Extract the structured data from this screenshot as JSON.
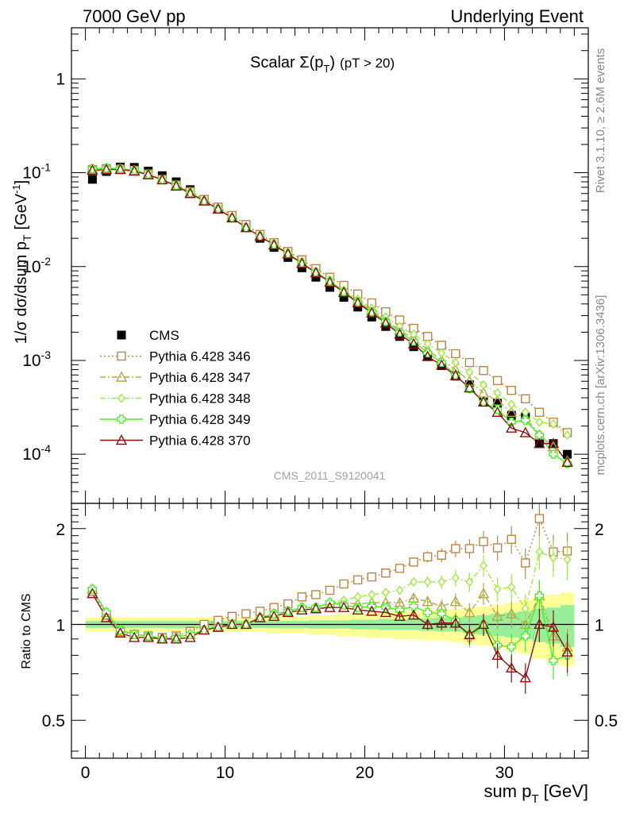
{
  "header": {
    "left": "7000 GeV pp",
    "right": "Underlying Event"
  },
  "side_labels": {
    "rivet": "Rivet 3.1.10, ≥ 2.6M events",
    "mcplots": "mcplots.cern.ch [arXiv:1306.3436]"
  },
  "chart_data": [
    {
      "type": "scatter",
      "panel": "main",
      "title_text": "Scalar Σ(p_T) (pT > 20)",
      "title": {
        "main": "Scalar ",
        "sigma": "Σ(p",
        "sub": "T",
        "close": ")",
        "cut": "(pT > 20)"
      },
      "ylabel": {
        "main": "1/σ dσ/dsum p",
        "sub": "T",
        "unit": "[GeV",
        "sup": "-1",
        "close": "]"
      },
      "watermark": "CMS_2011_S9120041",
      "yscale": "log",
      "ylim": [
        3e-05,
        3.5
      ],
      "xlim": [
        -1,
        36
      ],
      "legend_position": "bottom-left",
      "y_ticks": [
        {
          "value": 1,
          "base": "1",
          "exp": ""
        },
        {
          "value": 0.1,
          "base": "10",
          "exp": "-1"
        },
        {
          "value": 0.01,
          "base": "10",
          "exp": "-2"
        },
        {
          "value": 0.001,
          "base": "10",
          "exp": "-3"
        },
        {
          "value": 0.0001,
          "base": "10",
          "exp": "-4"
        }
      ],
      "x": [
        0.5,
        1.5,
        2.5,
        3.5,
        4.5,
        5.5,
        6.5,
        7.5,
        8.5,
        9.5,
        10.5,
        11.5,
        12.5,
        13.5,
        14.5,
        15.5,
        16.5,
        17.5,
        18.5,
        19.5,
        20.5,
        21.5,
        22.5,
        23.5,
        24.5,
        25.5,
        26.5,
        27.5,
        28.5,
        29.5,
        30.5,
        31.5,
        32.5,
        33.5,
        34.5
      ],
      "series": [
        {
          "name": "CMS",
          "color": "#000000",
          "marker": "square-filled",
          "line": "none",
          "values": [
            0.085,
            0.103,
            0.115,
            0.114,
            0.104,
            0.093,
            0.08,
            0.066,
            0.052,
            0.042,
            0.033,
            0.026,
            0.02,
            0.016,
            0.0125,
            0.0097,
            0.0077,
            0.006,
            0.0047,
            0.0037,
            0.0029,
            0.0023,
            0.0018,
            0.0014,
            0.0011,
            0.00088,
            0.00068,
            0.00055,
            0.00036,
            0.00035,
            0.00026,
            0.00025,
            0.00013,
            0.00013,
            0.0001
          ]
        },
        {
          "name": "Pythia 6.428 346",
          "color": "#b8864a",
          "marker": "square-open",
          "line": "dotted",
          "values": [
            0.108,
            0.11,
            0.109,
            0.106,
            0.097,
            0.085,
            0.074,
            0.063,
            0.052,
            0.043,
            0.035,
            0.028,
            0.022,
            0.018,
            0.0145,
            0.0118,
            0.0095,
            0.0077,
            0.0063,
            0.0051,
            0.0041,
            0.0033,
            0.0027,
            0.0022,
            0.0018,
            0.00145,
            0.00118,
            0.00095,
            0.00078,
            0.00061,
            0.00048,
            0.00039,
            0.00028,
            0.00022,
            0.00017
          ]
        },
        {
          "name": "Pythia 6.428 347",
          "color": "#b4a84a",
          "marker": "triangle-open",
          "line": "dashdot",
          "values": [
            0.11,
            0.112,
            0.11,
            0.106,
            0.096,
            0.084,
            0.073,
            0.061,
            0.05,
            0.041,
            0.033,
            0.026,
            0.021,
            0.0172,
            0.0138,
            0.011,
            0.0087,
            0.007,
            0.0055,
            0.0043,
            0.0034,
            0.0027,
            0.0021,
            0.0017,
            0.0013,
            0.001,
            0.0008,
            0.0006,
            0.00045,
            0.00037,
            0.00028,
            0.00025,
            0.00016,
            0.00012,
            8.5e-05
          ]
        },
        {
          "name": "Pythia 6.428 348",
          "color": "#9cec3c",
          "marker": "diamond-open",
          "line": "dashdot",
          "values": [
            0.11,
            0.112,
            0.11,
            0.106,
            0.096,
            0.084,
            0.073,
            0.061,
            0.05,
            0.041,
            0.033,
            0.026,
            0.021,
            0.0172,
            0.0138,
            0.011,
            0.0087,
            0.007,
            0.0056,
            0.0045,
            0.0036,
            0.0029,
            0.0023,
            0.0019,
            0.0015,
            0.0012,
            0.00095,
            0.00075,
            0.00055,
            0.00045,
            0.00034,
            0.00028,
            0.00022,
            0.00021,
            0.00016
          ]
        },
        {
          "name": "Pythia 6.428 349",
          "color": "#44ee22",
          "marker": "cross-open",
          "line": "solid",
          "values": [
            0.11,
            0.112,
            0.11,
            0.106,
            0.096,
            0.084,
            0.073,
            0.061,
            0.05,
            0.041,
            0.033,
            0.026,
            0.021,
            0.0172,
            0.0138,
            0.011,
            0.0087,
            0.007,
            0.0054,
            0.0042,
            0.0033,
            0.0026,
            0.002,
            0.0016,
            0.0012,
            0.00095,
            0.0007,
            0.0005,
            0.00036,
            0.0003,
            0.00022,
            0.00023,
            0.00016,
            0.0001,
            8e-05
          ]
        },
        {
          "name": "Pythia 6.428 370",
          "color": "#8c1010",
          "marker": "triangle-open",
          "line": "solid",
          "values": [
            0.106,
            0.108,
            0.108,
            0.104,
            0.095,
            0.084,
            0.072,
            0.06,
            0.05,
            0.041,
            0.033,
            0.026,
            0.021,
            0.017,
            0.0136,
            0.0108,
            0.0086,
            0.0068,
            0.0053,
            0.0041,
            0.0032,
            0.0025,
            0.0019,
            0.0015,
            0.0011,
            0.00089,
            0.00069,
            0.00051,
            0.00036,
            0.00028,
            0.00019,
            0.00017,
            0.00013,
            0.00013,
            8.2e-05
          ]
        }
      ]
    },
    {
      "type": "scatter",
      "panel": "ratio",
      "ylabel": "Ratio to CMS",
      "yscale": "log",
      "ylim": [
        0.38,
        2.4
      ],
      "xlim": [
        -1,
        36
      ],
      "xlabel": {
        "main": "sum p",
        "sub": "T",
        "unit": " [GeV]"
      },
      "x_ticks": [
        0,
        10,
        20,
        30
      ],
      "y_ticks": [
        0.5,
        1,
        2
      ],
      "reference_line": 1,
      "bands": {
        "outer_color": "#ffff99",
        "inner_color": "#99ee99",
        "outer_halfwidth": [
          0.05,
          0.05,
          0.05,
          0.05,
          0.05,
          0.05,
          0.05,
          0.05,
          0.05,
          0.05,
          0.05,
          0.05,
          0.05,
          0.06,
          0.06,
          0.06,
          0.07,
          0.07,
          0.08,
          0.08,
          0.09,
          0.09,
          0.1,
          0.1,
          0.11,
          0.11,
          0.12,
          0.13,
          0.14,
          0.15,
          0.17,
          0.19,
          0.22,
          0.24,
          0.26
        ],
        "inner_halfwidth": [
          0.025,
          0.025,
          0.025,
          0.025,
          0.025,
          0.025,
          0.025,
          0.025,
          0.025,
          0.025,
          0.025,
          0.025,
          0.025,
          0.025,
          0.025,
          0.025,
          0.03,
          0.03,
          0.03,
          0.035,
          0.035,
          0.04,
          0.04,
          0.04,
          0.045,
          0.05,
          0.05,
          0.06,
          0.07,
          0.08,
          0.09,
          0.1,
          0.12,
          0.13,
          0.15
        ]
      },
      "series": [
        {
          "name": "Pythia 6.428 346",
          "values": [
            1.27,
            1.07,
            0.95,
            0.93,
            0.92,
            0.91,
            0.92,
            0.95,
            1.0,
            1.03,
            1.06,
            1.08,
            1.1,
            1.13,
            1.16,
            1.22,
            1.24,
            1.28,
            1.34,
            1.38,
            1.41,
            1.45,
            1.5,
            1.57,
            1.63,
            1.65,
            1.73,
            1.73,
            1.82,
            1.74,
            1.85,
            1.56,
            2.15,
            1.69,
            1.7
          ]
        },
        {
          "name": "Pythia 6.428 347",
          "values": [
            1.29,
            1.09,
            0.96,
            0.93,
            0.92,
            0.9,
            0.91,
            0.93,
            0.96,
            0.98,
            1.0,
            1.0,
            1.05,
            1.08,
            1.1,
            1.13,
            1.13,
            1.17,
            1.17,
            1.16,
            1.17,
            1.17,
            1.17,
            1.21,
            1.18,
            1.14,
            1.18,
            1.09,
            1.25,
            1.06,
            1.08,
            1.0,
            1.23,
            0.92,
            0.85
          ]
        },
        {
          "name": "Pythia 6.428 348",
          "values": [
            1.29,
            1.09,
            0.96,
            0.93,
            0.92,
            0.9,
            0.91,
            0.93,
            0.96,
            0.98,
            1.0,
            1.0,
            1.05,
            1.08,
            1.1,
            1.13,
            1.13,
            1.17,
            1.19,
            1.22,
            1.24,
            1.26,
            1.28,
            1.36,
            1.36,
            1.36,
            1.4,
            1.36,
            1.53,
            1.29,
            1.31,
            1.12,
            1.69,
            1.62,
            1.6
          ]
        },
        {
          "name": "Pythia 6.428 349",
          "values": [
            1.29,
            1.09,
            0.96,
            0.93,
            0.92,
            0.9,
            0.91,
            0.93,
            0.96,
            0.98,
            1.0,
            1.0,
            1.05,
            1.08,
            1.1,
            1.13,
            1.13,
            1.17,
            1.15,
            1.13,
            1.14,
            1.13,
            1.11,
            1.14,
            1.09,
            1.08,
            1.03,
            0.91,
            1.0,
            0.86,
            0.85,
            0.92,
            1.23,
            0.77,
            0.8
          ]
        },
        {
          "name": "Pythia 6.428 370",
          "values": [
            1.25,
            1.05,
            0.94,
            0.91,
            0.91,
            0.9,
            0.9,
            0.91,
            0.96,
            0.98,
            1.0,
            1.0,
            1.05,
            1.06,
            1.09,
            1.11,
            1.12,
            1.13,
            1.13,
            1.11,
            1.1,
            1.09,
            1.06,
            1.07,
            1.0,
            1.01,
            1.01,
            0.93,
            1.0,
            0.8,
            0.73,
            0.68,
            1.0,
            0.98,
            0.82
          ]
        }
      ]
    }
  ]
}
